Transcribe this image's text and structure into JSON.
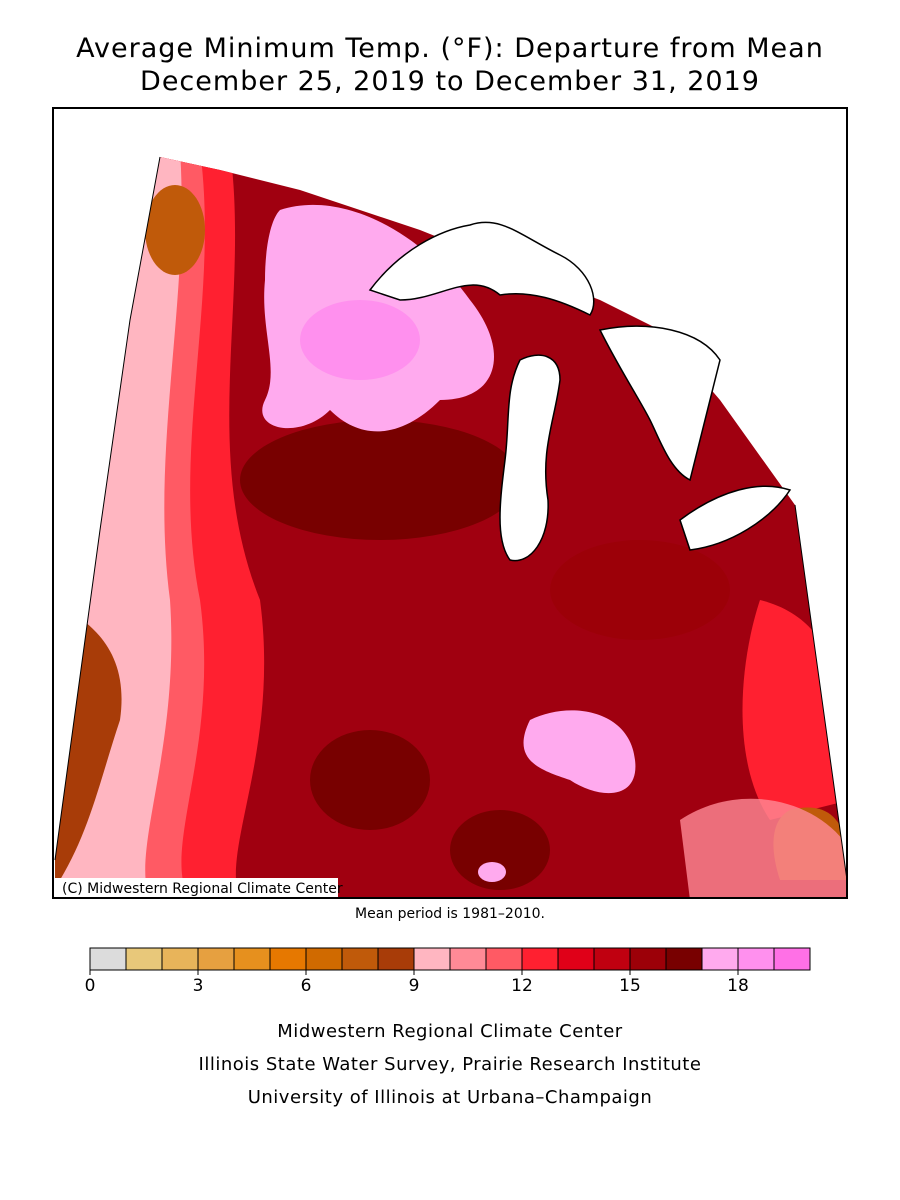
{
  "title_lines": [
    "Average Minimum Temp. (°F): Departure from Mean",
    "December 25, 2019 to December 31, 2019"
  ],
  "map": {
    "copyright": "(C) Midwestern Regional Climate Center"
  },
  "note": "Mean period is 1981–2010.",
  "legend": {
    "lim": [
      0,
      20
    ],
    "ticks": [
      0,
      3,
      6,
      9,
      12,
      15,
      18
    ],
    "colors": [
      "#dcdcdc",
      "#e8c87a",
      "#e8b45a",
      "#e6a040",
      "#e6901e",
      "#e67800",
      "#d06a00",
      "#c05a0a",
      "#a83c08",
      "#ffb6c1",
      "#ff8a96",
      "#ff5a64",
      "#ff2030",
      "#e00018",
      "#c00010",
      "#9c0008",
      "#780000",
      "#ffaaee",
      "#ff90ee",
      "#ff70e6"
    ]
  },
  "footer": [
    "Midwestern Regional Climate Center",
    "Illinois State Water Survey, Prairie Research Institute",
    "University of Illinois at Urbana–Champaign"
  ]
}
